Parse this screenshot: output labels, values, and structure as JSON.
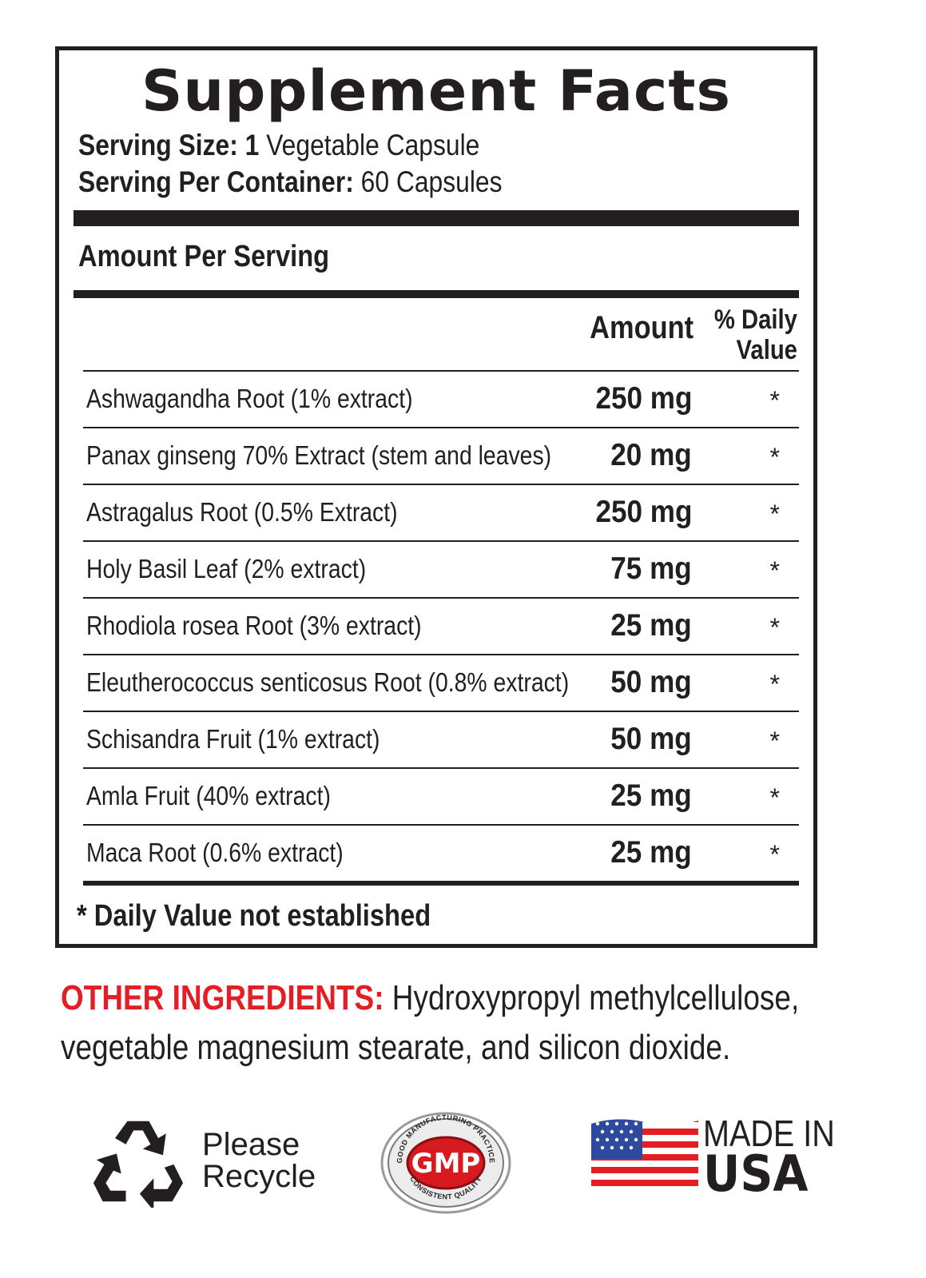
{
  "title": "Supplement Facts",
  "serving_size": {
    "label": "Serving Size:",
    "value": "1 Vegetable Capsule",
    "bold_part": "1"
  },
  "serving_per_container": {
    "label": "Serving Per Container:",
    "value": "60 Capsules"
  },
  "amount_per_serving": "Amount Per Serving",
  "columns": {
    "amount": "Amount",
    "dv_line1": "% Daily",
    "dv_line2": "Value"
  },
  "ingredients": [
    {
      "name": "Ashwagandha Root (1% extract)",
      "amount": "250 mg",
      "dv": "*"
    },
    {
      "name": "Panax ginseng 70% Extract (stem and leaves)",
      "amount": "20 mg",
      "dv": "*"
    },
    {
      "name": "Astragalus Root (0.5% Extract)",
      "amount": "250 mg",
      "dv": "*"
    },
    {
      "name": "Holy Basil Leaf (2% extract)",
      "amount": "75 mg",
      "dv": "*"
    },
    {
      "name": "Rhodiola rosea Root (3% extract)",
      "amount": "25 mg",
      "dv": "*"
    },
    {
      "name": "Eleutherococcus senticosus Root (0.8% extract)",
      "amount": "50 mg",
      "dv": "*"
    },
    {
      "name": "Schisandra Fruit (1% extract)",
      "amount": "50 mg",
      "dv": "*"
    },
    {
      "name": "Amla Fruit (40% extract)",
      "amount": "25 mg",
      "dv": "*"
    },
    {
      "name": "Maca Root (0.6% extract)",
      "amount": "25 mg",
      "dv": "*"
    }
  ],
  "footnote": {
    "star": "*",
    "text": "Daily Value not established"
  },
  "other_ingredients": {
    "label": "OTHER INGREDIENTS:",
    "line1": "Hydroxypropyl methylcellulose,",
    "line2": "vegetable magnesium stearate, and silicon dioxide."
  },
  "badges": {
    "recycle_line1": "Please",
    "recycle_line2": "Recycle",
    "gmp_center": "GMP",
    "gmp_ring_top": "GOOD MANUFACTURING PRACTICE",
    "gmp_ring_bottom": "CONSISTENT QUALITY",
    "made_in": "MADE IN",
    "usa": "USA"
  },
  "colors": {
    "text": "#231f20",
    "accent_red": "#e31e24",
    "flag_blue": "#2e4a9e",
    "gmp_red": "#d71920"
  },
  "icons": [
    "recycle-icon",
    "gmp-seal-icon",
    "usa-flag-icon"
  ]
}
